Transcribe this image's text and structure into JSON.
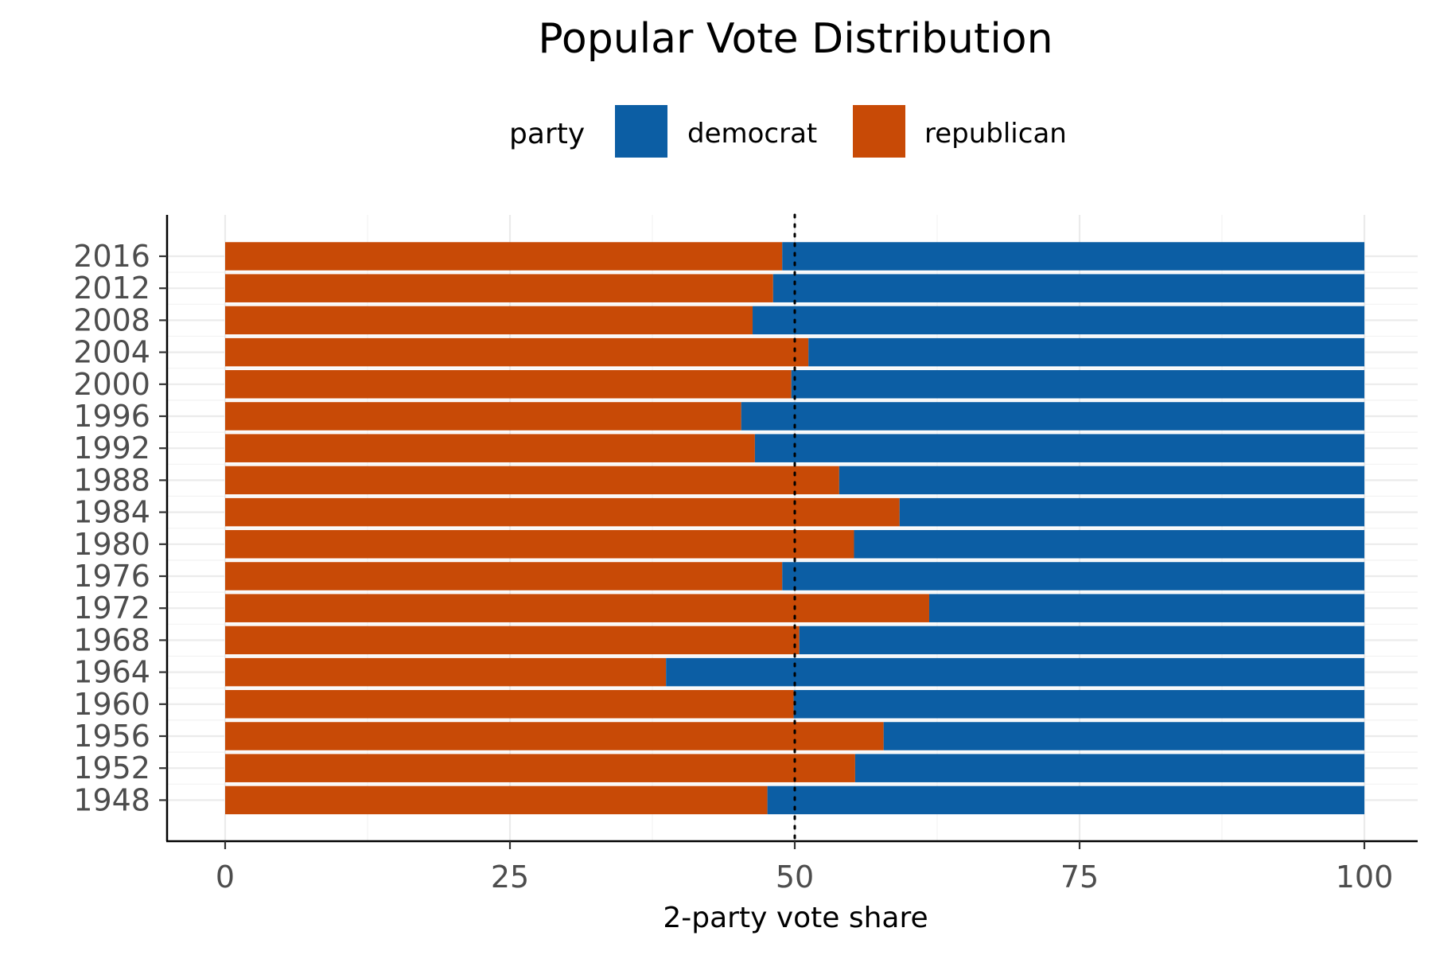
{
  "chart_data": {
    "type": "bar",
    "orientation": "horizontal",
    "stacked": true,
    "title": "Popular Vote Distribution",
    "xlabel": "2-party vote share",
    "ylabel": "",
    "xlim": [
      0,
      100
    ],
    "x_ticks": [
      0,
      25,
      50,
      75,
      100
    ],
    "reference_line": 50,
    "grid": true,
    "legend": {
      "title": "party",
      "position": "top",
      "entries": [
        {
          "label": "democrat",
          "color": "#0c5ea4"
        },
        {
          "label": "republican",
          "color": "#c84a06"
        }
      ]
    },
    "categories": [
      "1948",
      "1952",
      "1956",
      "1960",
      "1964",
      "1968",
      "1972",
      "1976",
      "1980",
      "1984",
      "1988",
      "1992",
      "1996",
      "2000",
      "2004",
      "2008",
      "2012",
      "2016"
    ],
    "series": [
      {
        "name": "republican",
        "color": "#c84a06",
        "values": [
          47.6,
          55.3,
          57.8,
          49.9,
          38.7,
          50.4,
          61.8,
          48.9,
          55.2,
          59.2,
          53.9,
          46.5,
          45.3,
          49.7,
          51.2,
          46.3,
          48.1,
          48.9
        ]
      },
      {
        "name": "democrat",
        "color": "#0c5ea4",
        "values": [
          52.4,
          44.7,
          42.2,
          50.1,
          61.3,
          49.6,
          38.2,
          51.1,
          44.8,
          40.8,
          46.1,
          53.5,
          54.7,
          50.3,
          48.8,
          53.7,
          51.9,
          51.1
        ]
      }
    ]
  }
}
